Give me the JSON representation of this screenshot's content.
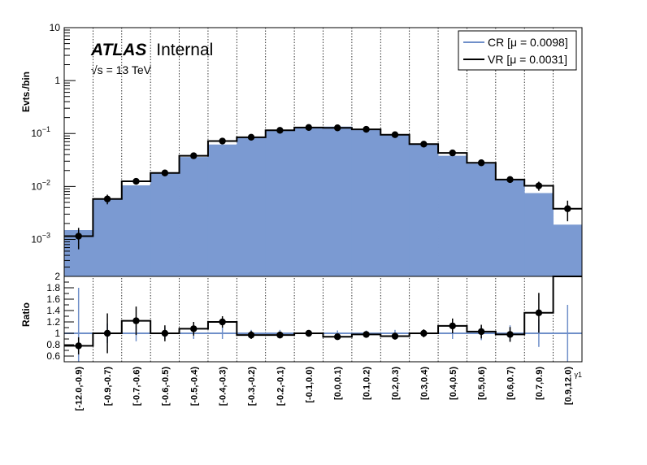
{
  "chart_data": [
    {
      "type": "bar",
      "panel": "main",
      "ylabel": "Evts./bin",
      "yscale": "log",
      "ylim": [
        0.0002,
        10
      ],
      "y_ticks": [
        {
          "value": 10,
          "label": "10",
          "exp": ""
        },
        {
          "value": 1,
          "label": "1",
          "exp": ""
        },
        {
          "value": 0.1,
          "label": "10",
          "exp": "−1"
        },
        {
          "value": 0.01,
          "label": "10",
          "exp": "−2"
        },
        {
          "value": 0.001,
          "label": "10",
          "exp": "−3"
        }
      ],
      "atlas_label": "ATLAS",
      "atlas_sub": "Internal",
      "energy_label": "√s = 13 TeV",
      "categories": [
        "[-12.0,-0.9)",
        "[-0.9,-0.7)",
        "[-0.7,-0.6)",
        "[-0.6,-0.5)",
        "[-0.5,-0.4)",
        "[-0.4,-0.3)",
        "[-0.3,-0.2)",
        "[-0.2,-0.1)",
        "[-0.1,0.0)",
        "[0.0,0.1)",
        "[0.1,0.2)",
        "[0.2,0.3)",
        "[0.3,0.4)",
        "[0.4,0.5)",
        "[0.5,0.6)",
        "[0.6,0.7)",
        "[0.7,0.9)",
        "[0.9,12.0)"
      ],
      "series": [
        {
          "name": "CR [μ = 0.0098]",
          "style": "filled",
          "color": "#7b9ad2",
          "legend_color": "#6f8fc9",
          "values": [
            0.0015,
            0.0058,
            0.0105,
            0.018,
            0.036,
            0.062,
            0.085,
            0.115,
            0.13,
            0.135,
            0.12,
            0.095,
            0.062,
            0.038,
            0.027,
            0.0135,
            0.0075,
            0.0019
          ]
        },
        {
          "name": "VR [μ = 0.0031]",
          "style": "step",
          "color": "#000000",
          "values": [
            0.00115,
            0.0058,
            0.0125,
            0.018,
            0.038,
            0.072,
            0.085,
            0.115,
            0.13,
            0.128,
            0.12,
            0.095,
            0.063,
            0.043,
            0.028,
            0.0135,
            0.0103,
            0.0038
          ],
          "errors": [
            0.0005,
            0.0012,
            0.0015,
            0.0014,
            0.003,
            0.006,
            0.006,
            0.007,
            0.007,
            0.007,
            0.007,
            0.006,
            0.005,
            0.004,
            0.003,
            0.0017,
            0.002,
            0.0016
          ]
        }
      ],
      "legend": "top-right",
      "grid": "vertical dotted"
    },
    {
      "type": "line",
      "panel": "ratio",
      "ylabel": "Ratio",
      "xlabel": "γ1",
      "ylim": [
        0.5,
        2.0
      ],
      "y_ticks": [
        0.6,
        0.8,
        1,
        1.2,
        1.4,
        1.6,
        1.8,
        2
      ],
      "ref_line": 1,
      "ref_color": "#6f8fc9",
      "ratio_values": [
        0.78,
        1.0,
        1.22,
        1.0,
        1.08,
        1.2,
        0.97,
        0.97,
        1.0,
        0.94,
        0.98,
        0.95,
        1.0,
        1.13,
        1.03,
        0.98,
        1.36,
        2.0
      ],
      "ratio_errors": [
        0.15,
        0.35,
        0.25,
        0.14,
        0.12,
        0.1,
        0.07,
        0.06,
        0.05,
        0.05,
        0.05,
        0.06,
        0.07,
        0.13,
        0.12,
        0.13,
        0.35,
        0
      ],
      "ref_errors": [
        0.8,
        0.17,
        0.14,
        0.1,
        0.1,
        0.1,
        0.06,
        0.06,
        0.05,
        0.05,
        0.05,
        0.06,
        0.06,
        0.1,
        0.12,
        0.14,
        0.24,
        0.5
      ],
      "ratio_points_shown": [
        true,
        true,
        true,
        true,
        true,
        true,
        true,
        true,
        true,
        true,
        true,
        true,
        true,
        true,
        true,
        true,
        true,
        false
      ]
    }
  ]
}
